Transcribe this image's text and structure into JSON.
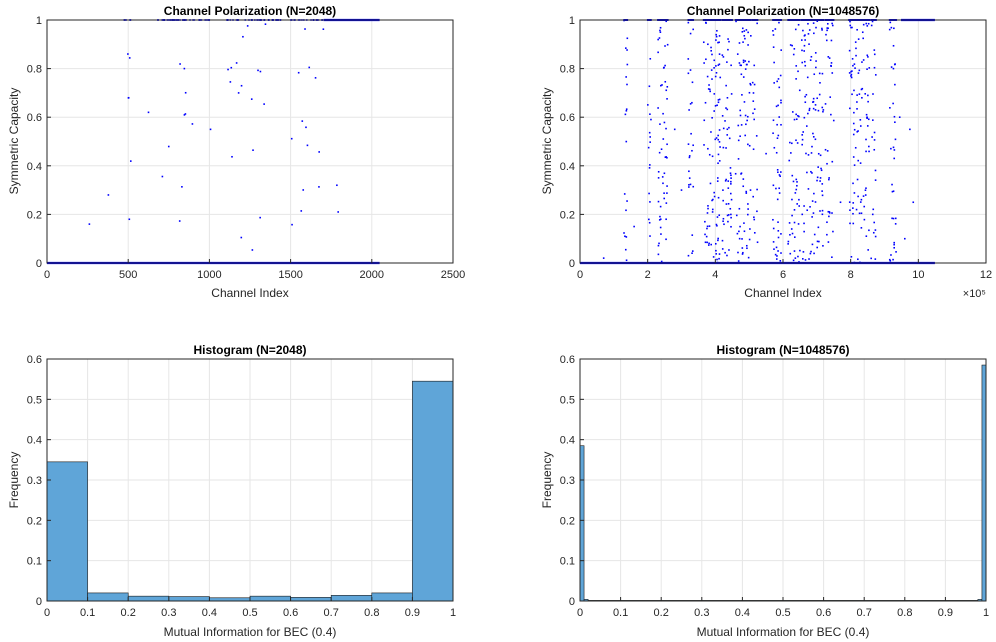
{
  "chart_data": [
    {
      "type": "scatter",
      "title": "Channel Polarization (N=2048)",
      "xlabel": "Channel Index",
      "ylabel": "Symmetric Capacity",
      "xlim": [
        0,
        2500
      ],
      "ylim": [
        0,
        1
      ],
      "xticks": [
        0,
        500,
        1000,
        1500,
        2000,
        2500
      ],
      "yticks": [
        0,
        0.2,
        0.4,
        0.6,
        0.8,
        1
      ],
      "xtick_labels": [
        "0",
        "500",
        "1000",
        "1500",
        "2000",
        "2500"
      ],
      "ytick_labels": [
        "0",
        "0.2",
        "0.4",
        "0.6",
        "0.8",
        "1"
      ],
      "x_multiplier": "",
      "grid": true,
      "color": "#0000ff",
      "n_points": 2048,
      "zero_until": 360,
      "one_from": 1820,
      "x_max": 2048,
      "dense_bands": [
        [
          470,
          520
        ],
        [
          680,
          1000
        ],
        [
          1100,
          1440
        ],
        [
          1500,
          1720
        ]
      ],
      "sparse_points": [
        [
          261,
          0.16
        ],
        [
          378,
          0.28
        ],
        [
          498,
          0.86
        ],
        [
          503,
          0.68
        ],
        [
          507,
          0.18
        ],
        [
          625,
          0.62
        ],
        [
          1007,
          0.55
        ],
        [
          1180,
          0.7
        ],
        [
          1785,
          0.32
        ],
        [
          1793,
          0.21
        ]
      ]
    },
    {
      "type": "scatter",
      "title": "Channel Polarization (N=1048576)",
      "xlabel": "Channel Index",
      "ylabel": "Symmetric Capacity",
      "xlim": [
        0,
        12
      ],
      "ylim": [
        0,
        1
      ],
      "xticks": [
        0,
        2,
        4,
        6,
        8,
        10,
        12
      ],
      "yticks": [
        0,
        0.2,
        0.4,
        0.6,
        0.8,
        1
      ],
      "xtick_labels": [
        "0",
        "2",
        "4",
        "6",
        "8",
        "10",
        "12"
      ],
      "ytick_labels": [
        "0",
        "0.2",
        "0.4",
        "0.6",
        "0.8",
        "1"
      ],
      "x_multiplier": "×10⁵",
      "grid": true,
      "color": "#0000ff",
      "n_points": 1048576,
      "zero_until": 1.3,
      "one_from": 10.2,
      "x_max": 10.49,
      "dense_bands": [
        [
          1.3,
          1.4
        ],
        [
          2.0,
          2.1
        ],
        [
          2.3,
          2.6
        ],
        [
          3.2,
          3.35
        ],
        [
          3.65,
          4.15
        ],
        [
          4.2,
          4.5
        ],
        [
          4.6,
          5.05
        ],
        [
          5.1,
          5.25
        ],
        [
          5.7,
          5.95
        ],
        [
          6.15,
          6.5
        ],
        [
          6.55,
          7.2
        ],
        [
          7.25,
          7.5
        ],
        [
          7.95,
          8.55
        ],
        [
          8.6,
          8.75
        ],
        [
          9.15,
          9.35
        ]
      ],
      "sparse_points": [
        [
          0.7,
          0.02
        ],
        [
          1.6,
          0.15
        ],
        [
          2.8,
          0.55
        ],
        [
          3.0,
          0.3
        ],
        [
          5.5,
          0.45
        ],
        [
          7.7,
          0.25
        ],
        [
          9.45,
          0.6
        ],
        [
          9.6,
          0.1
        ],
        [
          9.75,
          0.55
        ],
        [
          9.85,
          0.25
        ]
      ]
    },
    {
      "type": "bar",
      "title": "Histogram (N=2048)",
      "xlabel": "Mutual Information for BEC (0.4)",
      "ylabel": "Frequency",
      "xlim": [
        0,
        1
      ],
      "ylim": [
        0,
        0.6
      ],
      "xticks": [
        0,
        0.1,
        0.2,
        0.3,
        0.4,
        0.5,
        0.6,
        0.7,
        0.8,
        0.9,
        1
      ],
      "yticks": [
        0,
        0.1,
        0.2,
        0.3,
        0.4,
        0.5,
        0.6
      ],
      "xtick_labels": [
        "0",
        "0.1",
        "0.2",
        "0.3",
        "0.4",
        "0.5",
        "0.6",
        "0.7",
        "0.8",
        "0.9",
        "1"
      ],
      "ytick_labels": [
        "0",
        "0.1",
        "0.2",
        "0.3",
        "0.4",
        "0.5",
        "0.6"
      ],
      "grid": true,
      "color": "#5fa5d8",
      "bin_edges": [
        0,
        0.1,
        0.2,
        0.3,
        0.4,
        0.5,
        0.6,
        0.7,
        0.8,
        0.9,
        1.0
      ],
      "values": [
        0.345,
        0.02,
        0.012,
        0.011,
        0.008,
        0.012,
        0.009,
        0.014,
        0.02,
        0.545
      ]
    },
    {
      "type": "bar",
      "title": "Histogram (N=1048576)",
      "xlabel": "Mutual Information for BEC (0.4)",
      "ylabel": "Frequency",
      "xlim": [
        0,
        1
      ],
      "ylim": [
        0,
        0.6
      ],
      "xticks": [
        0,
        0.1,
        0.2,
        0.3,
        0.4,
        0.5,
        0.6,
        0.7,
        0.8,
        0.9,
        1
      ],
      "yticks": [
        0,
        0.1,
        0.2,
        0.3,
        0.4,
        0.5,
        0.6
      ],
      "xtick_labels": [
        "0",
        "0.1",
        "0.2",
        "0.3",
        "0.4",
        "0.5",
        "0.6",
        "0.7",
        "0.8",
        "0.9",
        "1"
      ],
      "ytick_labels": [
        "0",
        "0.1",
        "0.2",
        "0.3",
        "0.4",
        "0.5",
        "0.6"
      ],
      "grid": true,
      "color": "#5fa5d8",
      "bin_edges": [
        0,
        0.01,
        0.02,
        0.98,
        0.99,
        1.0
      ],
      "values": [
        0.385,
        0.004,
        0.0015,
        0.004,
        0.585
      ]
    }
  ]
}
